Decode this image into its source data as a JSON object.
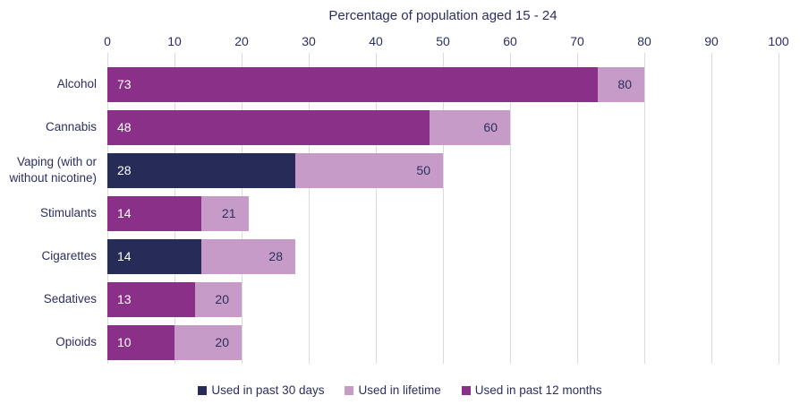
{
  "colors": {
    "text": "#2b2f5e",
    "gridline": "#dbdbdb",
    "past30": "#262b58",
    "lifetime": "#c79bc8",
    "past12": "#8a3088",
    "inner_value_label": "#ffffff",
    "background": "#ffffff"
  },
  "chart_data": {
    "type": "bar",
    "orientation": "horizontal",
    "title": "Percentage of population aged 15 - 24",
    "axis": {
      "position": "top",
      "min": 0,
      "max": 100,
      "tick_step": 10,
      "ticks": [
        0,
        10,
        20,
        30,
        40,
        50,
        60,
        70,
        80,
        90,
        100
      ],
      "gridlines": true
    },
    "categories": [
      "Alcohol",
      "Cannabis",
      "Vaping (with or without nicotine)",
      "Stimulants",
      "Cigarettes",
      "Sedatives",
      "Opioids"
    ],
    "series": [
      {
        "name": "Used in past 30 days",
        "color_key": "past30",
        "values": [
          null,
          null,
          28,
          null,
          14,
          null,
          null
        ]
      },
      {
        "name": "Used in lifetime",
        "color_key": "lifetime",
        "values": [
          80,
          60,
          50,
          21,
          28,
          20,
          20
        ]
      },
      {
        "name": "Used in past 12 months",
        "color_key": "past12",
        "values": [
          73,
          48,
          null,
          14,
          null,
          13,
          10
        ]
      }
    ],
    "legend": {
      "position": "bottom",
      "items": [
        {
          "label": "Used in past 30 days",
          "color_key": "past30"
        },
        {
          "label": "Used in lifetime",
          "color_key": "lifetime"
        },
        {
          "label": "Used in past 12 months",
          "color_key": "past12"
        }
      ]
    }
  }
}
